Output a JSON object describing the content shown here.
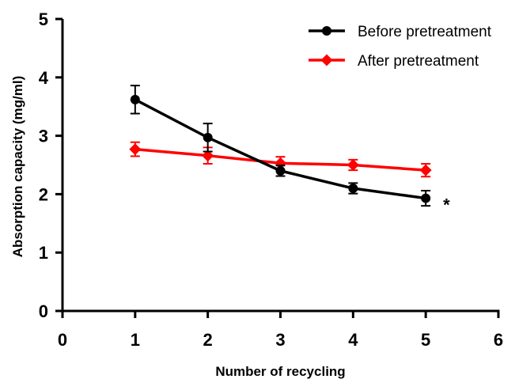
{
  "chart_data": {
    "type": "line",
    "xlabel": "Number of recycling",
    "ylabel": "Absorption capacity (mg/ml)",
    "xlim": [
      0,
      6
    ],
    "ylim": [
      0,
      5
    ],
    "xticks": [
      "0",
      "1",
      "2",
      "3",
      "4",
      "5",
      "6"
    ],
    "yticks": [
      "0",
      "1",
      "2",
      "3",
      "4",
      "5"
    ],
    "grid": false,
    "legend_position": "top-right",
    "x": [
      1,
      2,
      3,
      4,
      5
    ],
    "series": [
      {
        "name": "Before pretreatment",
        "color": "#000000",
        "marker": "circle",
        "values": [
          3.62,
          2.97,
          2.4,
          2.1,
          1.93
        ],
        "error": [
          0.24,
          0.24,
          0.09,
          0.09,
          0.13
        ]
      },
      {
        "name": "After pretreatment",
        "color": "#ff0000",
        "marker": "diamond",
        "values": [
          2.77,
          2.66,
          2.53,
          2.5,
          2.41
        ],
        "error": [
          0.12,
          0.14,
          0.11,
          0.09,
          0.11
        ]
      }
    ],
    "annotations": [
      {
        "text": "*",
        "x": 5,
        "series": "Before pretreatment"
      }
    ]
  }
}
